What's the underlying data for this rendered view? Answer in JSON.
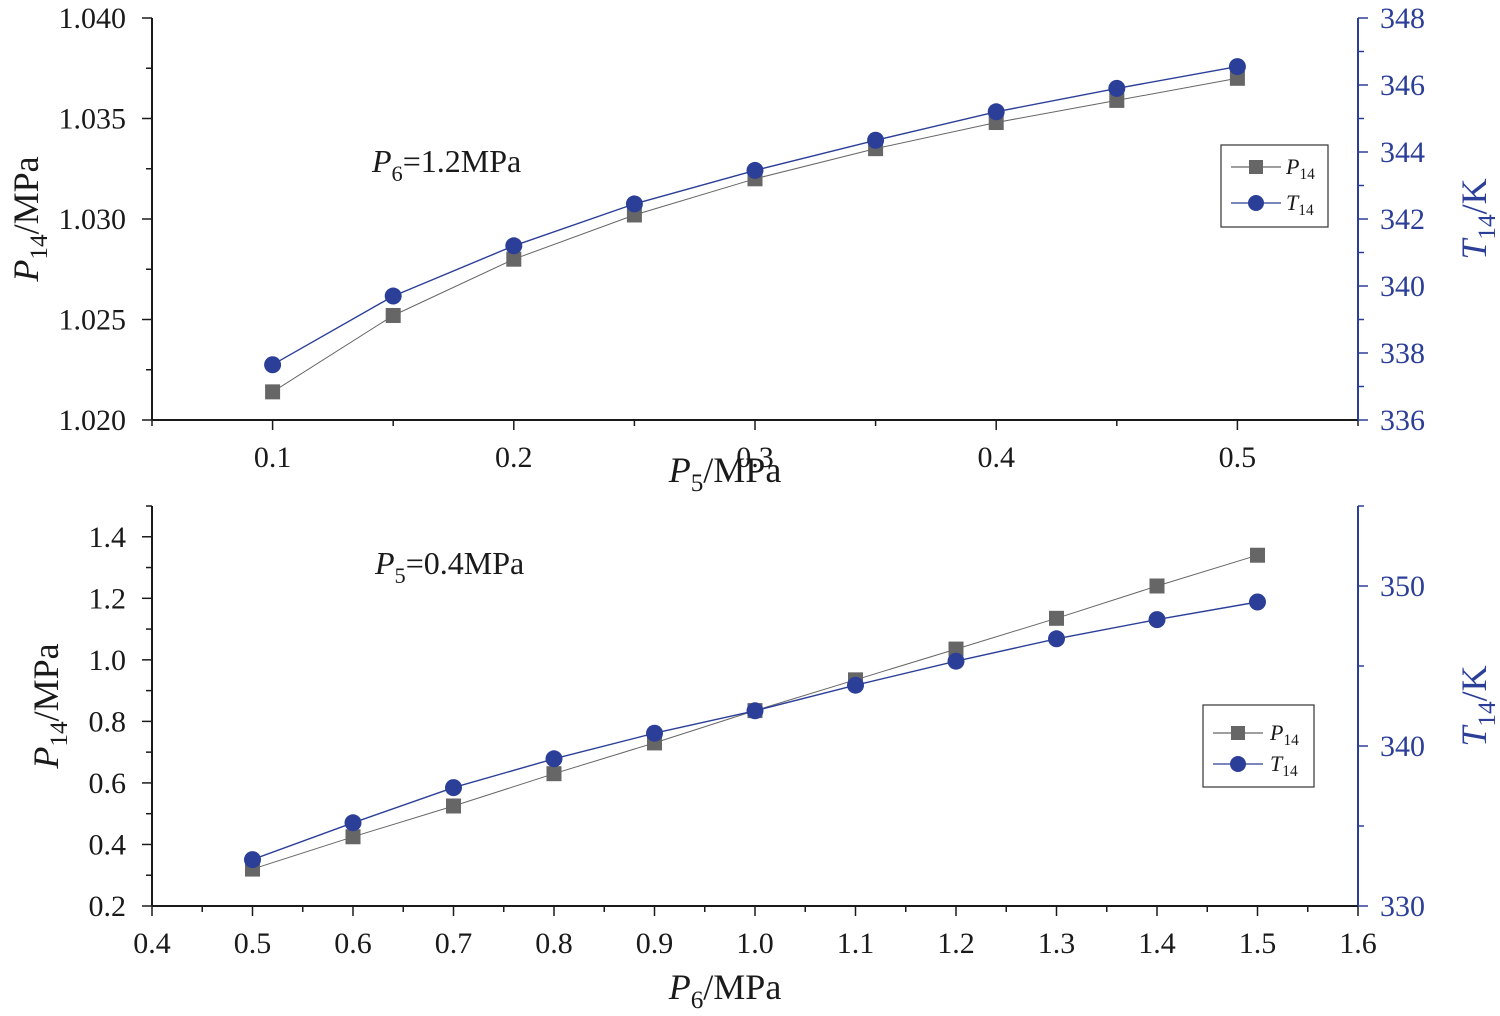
{
  "colors": {
    "p14": "#666666",
    "t14": "#2c3f98",
    "axis": "#1a1a1a"
  },
  "chart_data": [
    {
      "type": "line",
      "x": [
        0.1,
        0.15,
        0.2,
        0.25,
        0.3,
        0.35,
        0.4,
        0.45,
        0.5
      ],
      "series": [
        {
          "name": "P14",
          "axis": "left",
          "marker": "square",
          "values": [
            1.0214,
            1.0252,
            1.028,
            1.0302,
            1.032,
            1.0335,
            1.0348,
            1.0359,
            1.037
          ]
        },
        {
          "name": "T14",
          "axis": "right",
          "marker": "circle",
          "values": [
            337.65,
            339.7,
            341.2,
            342.45,
            343.45,
            344.35,
            345.2,
            345.9,
            346.55
          ]
        }
      ],
      "xlim": [
        0.05,
        0.55
      ],
      "ylim": [
        1.02,
        1.04
      ],
      "y2lim": [
        336,
        348
      ],
      "xticks": [
        0.1,
        0.2,
        0.3,
        0.4,
        0.5
      ],
      "xtick_labels": [
        "0.1",
        "0.2",
        "0.3",
        "0.4",
        "0.5"
      ],
      "yticks": [
        1.02,
        1.025,
        1.03,
        1.035,
        1.04
      ],
      "ytick_labels": [
        "1.020",
        "1.025",
        "1.030",
        "1.035",
        "1.040"
      ],
      "y2ticks": [
        336,
        338,
        340,
        342,
        344,
        346,
        348
      ],
      "y2tick_labels": [
        "336",
        "338",
        "340",
        "342",
        "344",
        "346",
        "348"
      ],
      "xlabel": {
        "main": "P",
        "sub": "5",
        "unit": "/MPa"
      },
      "ylabel": {
        "main": "P",
        "sub": "14",
        "unit": "/MPa"
      },
      "y2label": {
        "main": "T",
        "sub": "14",
        "unit": "/K"
      },
      "annotation": {
        "main": "P",
        "sub": "6",
        "rest": "=1.2MPa"
      },
      "legend": [
        {
          "main": "P",
          "sub": "14"
        },
        {
          "main": "T",
          "sub": "14"
        }
      ],
      "legend_position": "top-right"
    },
    {
      "type": "line",
      "x": [
        0.5,
        0.6,
        0.7,
        0.8,
        0.9,
        1.0,
        1.1,
        1.2,
        1.3,
        1.4,
        1.5
      ],
      "series": [
        {
          "name": "P14",
          "axis": "left",
          "marker": "square",
          "values": [
            0.32,
            0.425,
            0.525,
            0.63,
            0.73,
            0.835,
            0.935,
            1.035,
            1.135,
            1.24,
            1.34
          ]
        },
        {
          "name": "T14",
          "axis": "right",
          "marker": "circle",
          "values": [
            332.9,
            335.2,
            337.4,
            339.2,
            340.8,
            342.2,
            343.8,
            345.3,
            346.7,
            347.9,
            349.0
          ]
        }
      ],
      "xlim": [
        0.4,
        1.6
      ],
      "ylim": [
        0.2,
        1.5
      ],
      "y2lim": [
        330,
        355
      ],
      "xticks": [
        0.4,
        0.5,
        0.6,
        0.7,
        0.8,
        0.9,
        1.0,
        1.1,
        1.2,
        1.3,
        1.4,
        1.5,
        1.6
      ],
      "xtick_labels": [
        "0.4",
        "0.5",
        "0.6",
        "0.7",
        "0.8",
        "0.9",
        "1.0",
        "1.1",
        "1.2",
        "1.3",
        "1.4",
        "1.5",
        "1.6"
      ],
      "yticks": [
        0.2,
        0.4,
        0.6,
        0.8,
        1.0,
        1.2,
        1.4
      ],
      "ytick_labels": [
        "0.2",
        "0.4",
        "0.6",
        "0.8",
        "1.0",
        "1.2",
        "1.4"
      ],
      "y2ticks": [
        330,
        340,
        350
      ],
      "y2tick_labels": [
        "330",
        "340",
        "350"
      ],
      "xlabel": {
        "main": "P",
        "sub": "6",
        "unit": "/MPa"
      },
      "ylabel": {
        "main": "P",
        "sub": "14",
        "unit": "/MPa"
      },
      "y2label": {
        "main": "T",
        "sub": "14",
        "unit": "/K"
      },
      "annotation": {
        "main": "P",
        "sub": "5",
        "rest": "=0.4MPa"
      },
      "legend": [
        {
          "main": "P",
          "sub": "14"
        },
        {
          "main": "T",
          "sub": "14"
        }
      ],
      "legend_position": "right"
    }
  ]
}
